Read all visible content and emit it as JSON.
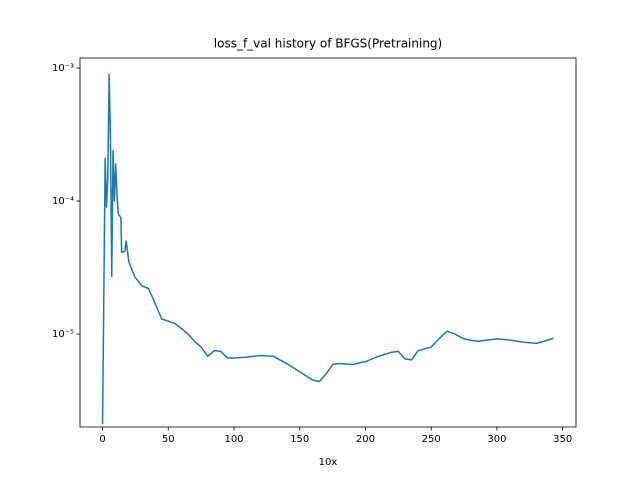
{
  "chart_data": {
    "type": "line",
    "title": "loss_f_val history of BFGS(Pretraining)",
    "x_label": "10x",
    "log_y": true,
    "color": "#1f77b4",
    "xlim": [
      -17.15,
      360.15
    ],
    "xticks": [
      0,
      50,
      100,
      150,
      200,
      250,
      300,
      350
    ],
    "ylim": [
      2e-06,
      0.00119
    ],
    "yticks": [
      {
        "value": 1e-05,
        "label": "10⁻⁵"
      },
      {
        "value": 0.0001,
        "label": "10⁻⁴"
      },
      {
        "value": 0.001,
        "label": "10⁻³"
      }
    ],
    "x": [
      0,
      2,
      3,
      4,
      5,
      6,
      7,
      8,
      9,
      10,
      11,
      12,
      14,
      14.5,
      17,
      18,
      20,
      24.5,
      30,
      35,
      40,
      45,
      50,
      55,
      60,
      65,
      70,
      75,
      80,
      85,
      90,
      95,
      100,
      110,
      120,
      130,
      140,
      150,
      160,
      165,
      170,
      175,
      180,
      190,
      200,
      210,
      220,
      225,
      230,
      235,
      240,
      250,
      255,
      262,
      268,
      275,
      285,
      300,
      310,
      320,
      330,
      337,
      343
    ],
    "values": [
      2.1e-06,
      0.00021,
      9e-05,
      0.00015,
      0.0009,
      0.0003,
      2.7e-05,
      0.00024,
      0.0001,
      0.00019,
      0.00011,
      8e-05,
      7.5e-05,
      4.1e-05,
      4.2e-05,
      5e-05,
      3.5e-05,
      2.7e-05,
      2.3e-05,
      2.2e-05,
      1.7e-05,
      1.3e-05,
      1.25e-05,
      1.2e-05,
      1.1e-05,
      1e-05,
      8.8e-06,
      8e-06,
      6.8e-06,
      7.5e-06,
      7.4e-06,
      6.6e-06,
      6.6e-06,
      6.7e-06,
      6.9e-06,
      6.8e-06,
      6e-06,
      5.2e-06,
      4.5e-06,
      4.4e-06,
      5e-06,
      5.9e-06,
      6e-06,
      5.9e-06,
      6.2e-06,
      6.8e-06,
      7.3e-06,
      7.4e-06,
      6.5e-06,
      6.4e-06,
      7.5e-06,
      8e-06,
      9e-06,
      1.05e-05,
      1e-05,
      9.2e-06,
      8.8e-06,
      9.2e-06,
      9e-06,
      8.7e-06,
      8.5e-06,
      8.9e-06,
      9.3e-06
    ]
  }
}
